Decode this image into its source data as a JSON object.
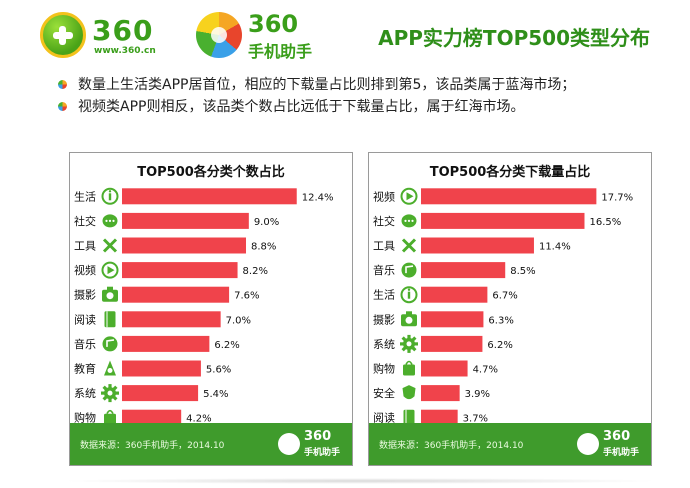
{
  "header": {
    "logo_360_text": "360",
    "logo_360_url": "www.360.cn",
    "logo_app_text": "360",
    "logo_app_sub": "手机助手",
    "title": "APP实力榜TOP500类型分布"
  },
  "bullets": [
    "数量上生活类APP居首位，相应的下载量占比则排到第5，该品类属于蓝海市场；",
    "视频类APP则相反，该品类个数占比远低于下载量占比，属于红海市场。"
  ],
  "colors": {
    "bar": "#f0434b",
    "icon": "#4cae2c",
    "footer": "#3f9b2c"
  },
  "chart_data": [
    {
      "type": "bar",
      "orientation": "horizontal",
      "title": "TOP500各分类个数占比",
      "categories": [
        "生活",
        "社交",
        "工具",
        "视频",
        "摄影",
        "阅读",
        "音乐",
        "教育",
        "系统",
        "购物"
      ],
      "icons": [
        "info-icon",
        "chat-icon",
        "tools-icon",
        "play-icon",
        "camera-icon",
        "book-icon",
        "music-icon",
        "education-icon",
        "gear-icon",
        "bag-icon"
      ],
      "values": [
        12.4,
        9.0,
        8.8,
        8.2,
        7.6,
        7.0,
        6.2,
        5.6,
        5.4,
        4.2
      ],
      "labels": [
        "12.4%",
        "9.0%",
        "8.8%",
        "8.2%",
        "7.6%",
        "7.0%",
        "6.2%",
        "5.6%",
        "5.4%",
        "4.2%"
      ],
      "xlim": [
        0,
        13.5
      ],
      "footer_source": "数据来源：360手机助手，2014.10",
      "footer_logo": "360",
      "footer_logo_sub": "手机助手"
    },
    {
      "type": "bar",
      "orientation": "horizontal",
      "title": "TOP500各分类下载量占比",
      "categories": [
        "视频",
        "社交",
        "工具",
        "音乐",
        "生活",
        "摄影",
        "系统",
        "购物",
        "安全",
        "阅读"
      ],
      "icons": [
        "play-icon",
        "chat-icon",
        "tools-icon",
        "music-icon",
        "info-icon",
        "camera-icon",
        "gear-icon",
        "bag-icon",
        "shield-icon",
        "book-icon"
      ],
      "values": [
        17.7,
        16.5,
        11.4,
        8.5,
        6.7,
        6.3,
        6.2,
        4.7,
        3.9,
        3.7
      ],
      "labels": [
        "17.7%",
        "16.5%",
        "11.4%",
        "8.5%",
        "6.7%",
        "6.3%",
        "6.2%",
        "4.7%",
        "3.9%",
        "3.7%"
      ],
      "xlim": [
        0,
        19.2
      ],
      "footer_source": "数据来源：360手机助手，2014.10",
      "footer_logo": "360",
      "footer_logo_sub": "手机助手"
    }
  ]
}
